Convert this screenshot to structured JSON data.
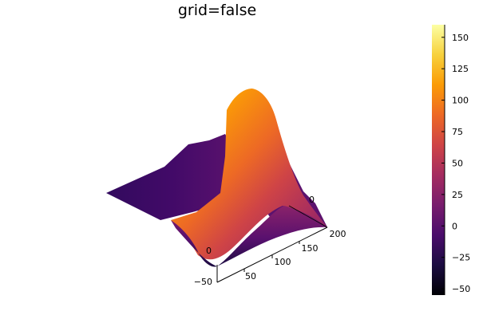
{
  "chart_data": {
    "type": "surface",
    "title": "grid=false",
    "grid": false,
    "colormap": "inferno",
    "legend": "colorbar-right",
    "clim": [
      -55,
      160
    ],
    "colorbar_ticks": [
      "150",
      "125",
      "100",
      "75",
      "50",
      "25",
      "0",
      "−25",
      "−50"
    ],
    "x_axis": {
      "ticks": [
        "50",
        "100",
        "150",
        "200"
      ],
      "range": [
        0,
        200
      ]
    },
    "y_axis": {
      "ticks": [
        "−50"
      ],
      "range": [
        -50,
        200
      ]
    },
    "partially_visible_tick_labels": [
      "0",
      "0"
    ],
    "surface": {
      "description_values": [
        {
          "x": 0,
          "y": 0,
          "z": 0
        },
        {
          "x": 100,
          "y": 100,
          "z": 158
        },
        {
          "x": 200,
          "y": 200,
          "z": 0
        }
      ]
    },
    "colorbar_stops": [
      "#000004",
      "#1b0c41",
      "#4a0c6b",
      "#781c6d",
      "#a52c60",
      "#cf4446",
      "#ed6925",
      "#fb9b06",
      "#f7d13d",
      "#fcffa4"
    ]
  }
}
